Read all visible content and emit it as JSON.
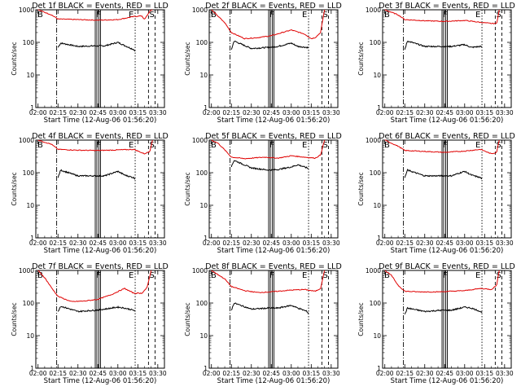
{
  "chart_data": {
    "type": "line",
    "layout": "3x3 grid",
    "colors": {
      "events": "#000000",
      "lld": "#e00000",
      "axes": "#000000"
    },
    "x_ticks": [
      "02:00",
      "02:15",
      "02:30",
      "02:45",
      "03:00",
      "03:15",
      "03:30"
    ],
    "xlabel": "Start Time (12-Aug-06 01:56:20)",
    "ylabel": "Counts/sec",
    "yscale": "log",
    "y_ticks": [
      "1",
      "10",
      "100",
      "1000"
    ],
    "xlim": [
      "01:58:20",
      "03:35:00"
    ],
    "ylim": [
      1,
      1000
    ],
    "markers": {
      "start_label": "B",
      "end_label": "E",
      "saa_label": "S",
      "flare_label": "F"
    },
    "vertical_lines": {
      "dashdot": "02:14",
      "flare_box": [
        "02:43",
        "02:47"
      ],
      "dotted": "03:13",
      "dashed": "03:23",
      "dashed2": "03:28"
    },
    "panels": [
      {
        "title": "Det 1f BLACK = Events, RED = LLD",
        "series": [
          {
            "name": "Events",
            "x": [
              "02:15",
              "02:17",
              "02:30",
              "02:43",
              "02:50",
              "03:00",
              "03:05",
              "03:12",
              "03:13"
            ],
            "values": [
              70,
              95,
              75,
              78,
              78,
              100,
              80,
              60,
              55
            ]
          },
          {
            "name": "LLD",
            "x": [
              "02:00",
              "02:10",
              "02:15",
              "02:30",
              "02:45",
              "03:00",
              "03:12",
              "03:18",
              "03:20",
              "03:24",
              "03:26"
            ],
            "values": [
              1000,
              700,
              520,
              500,
              480,
              500,
              620,
              650,
              500,
              900,
              1000
            ]
          }
        ]
      },
      {
        "title": "Det 2f BLACK = Events, RED = LLD",
        "series": [
          {
            "name": "Events",
            "x": [
              "02:15",
              "02:17",
              "02:30",
              "02:43",
              "02:50",
              "03:00",
              "03:05",
              "03:12",
              "03:13"
            ],
            "values": [
              60,
              110,
              65,
              70,
              75,
              95,
              75,
              70,
              68
            ]
          },
          {
            "name": "LLD",
            "x": [
              "02:00",
              "02:10",
              "02:15",
              "02:25",
              "02:35",
              "02:45",
              "03:00",
              "03:10",
              "03:15",
              "03:18",
              "03:22",
              "03:25"
            ],
            "values": [
              1000,
              400,
              200,
              130,
              140,
              160,
              240,
              180,
              130,
              140,
              200,
              1000
            ]
          }
        ]
      },
      {
        "title": "Det 3f BLACK = Events, RED = LLD",
        "series": [
          {
            "name": "Events",
            "x": [
              "02:15",
              "02:17",
              "02:30",
              "02:43",
              "02:50",
              "03:00",
              "03:05",
              "03:12",
              "03:13"
            ],
            "values": [
              60,
              110,
              75,
              75,
              75,
              85,
              70,
              75,
              70
            ]
          },
          {
            "name": "LLD",
            "x": [
              "02:00",
              "02:10",
              "02:15",
              "02:30",
              "02:45",
              "03:00",
              "03:10",
              "03:20",
              "03:24",
              "03:25",
              "03:26"
            ],
            "values": [
              1000,
              700,
              500,
              460,
              440,
              470,
              420,
              380,
              380,
              600,
              1000
            ]
          }
        ]
      },
      {
        "title": "Det 4f BLACK = Events, RED = LLD",
        "series": [
          {
            "name": "Events",
            "x": [
              "02:15",
              "02:17",
              "02:30",
              "02:43",
              "02:50",
              "03:00",
              "03:05",
              "03:12",
              "03:13"
            ],
            "values": [
              70,
              120,
              80,
              80,
              80,
              110,
              85,
              70,
              65
            ]
          },
          {
            "name": "LLD",
            "x": [
              "02:00",
              "02:10",
              "02:15",
              "02:30",
              "02:45",
              "03:00",
              "03:12",
              "03:20",
              "03:24",
              "03:26"
            ],
            "values": [
              1000,
              750,
              520,
              490,
              480,
              500,
              520,
              380,
              450,
              1000
            ]
          }
        ]
      },
      {
        "title": "Det 5f BLACK = Events, RED = LLD",
        "series": [
          {
            "name": "Events",
            "x": [
              "02:15",
              "02:17",
              "02:30",
              "02:43",
              "02:50",
              "03:00",
              "03:05",
              "03:12",
              "03:13"
            ],
            "values": [
              150,
              240,
              140,
              120,
              125,
              150,
              175,
              140,
              130
            ]
          },
          {
            "name": "LLD",
            "x": [
              "02:00",
              "02:05",
              "02:10",
              "02:15",
              "02:25",
              "02:40",
              "02:50",
              "03:00",
              "03:10",
              "03:18",
              "03:22",
              "03:25"
            ],
            "values": [
              1000,
              800,
              500,
              300,
              270,
              300,
              280,
              330,
              300,
              280,
              350,
              1000
            ]
          }
        ]
      },
      {
        "title": "Det 6f BLACK = Events, RED = LLD",
        "series": [
          {
            "name": "Events",
            "x": [
              "02:15",
              "02:17",
              "02:30",
              "02:43",
              "02:50",
              "03:00",
              "03:05",
              "03:12",
              "03:13"
            ],
            "values": [
              70,
              120,
              80,
              80,
              80,
              110,
              85,
              70,
              65
            ]
          },
          {
            "name": "LLD",
            "x": [
              "02:00",
              "02:10",
              "02:15",
              "02:30",
              "02:45",
              "03:00",
              "03:12",
              "03:20",
              "03:24",
              "03:26"
            ],
            "values": [
              1000,
              650,
              480,
              450,
              420,
              460,
              520,
              380,
              420,
              1000
            ]
          }
        ]
      },
      {
        "title": "Det 7f BLACK = Events, RED = LLD",
        "series": [
          {
            "name": "Events",
            "x": [
              "02:15",
              "02:17",
              "02:30",
              "02:43",
              "02:50",
              "03:00",
              "03:05",
              "03:12",
              "03:13"
            ],
            "values": [
              55,
              80,
              55,
              60,
              65,
              75,
              70,
              60,
              55
            ]
          },
          {
            "name": "LLD",
            "x": [
              "02:00",
              "02:05",
              "02:10",
              "02:15",
              "02:25",
              "02:35",
              "02:45",
              "02:55",
              "03:05",
              "03:12",
              "03:18",
              "03:22",
              "03:25"
            ],
            "values": [
              1000,
              600,
              300,
              160,
              110,
              115,
              130,
              180,
              280,
              200,
              200,
              300,
              1000
            ]
          }
        ]
      },
      {
        "title": "Det 8f BLACK = Events, RED = LLD",
        "series": [
          {
            "name": "Events",
            "x": [
              "02:15",
              "02:17",
              "02:30",
              "02:43",
              "02:50",
              "03:00",
              "03:05",
              "03:12",
              "03:13"
            ],
            "values": [
              60,
              100,
              65,
              70,
              70,
              85,
              70,
              55,
              45
            ]
          },
          {
            "name": "LLD",
            "x": [
              "02:00",
              "02:10",
              "02:15",
              "02:25",
              "02:35",
              "02:45",
              "03:00",
              "03:10",
              "03:15",
              "03:18",
              "03:22",
              "03:25"
            ],
            "values": [
              1000,
              550,
              320,
              240,
              210,
              220,
              250,
              260,
              240,
              230,
              280,
              1000
            ]
          }
        ]
      },
      {
        "title": "Det 9f BLACK = Events, RED = LLD",
        "series": [
          {
            "name": "Events",
            "x": [
              "02:15",
              "02:17",
              "02:30",
              "02:43",
              "02:50",
              "03:00",
              "03:05",
              "03:12",
              "03:13"
            ],
            "values": [
              45,
              70,
              55,
              60,
              60,
              75,
              70,
              55,
              50
            ]
          },
          {
            "name": "LLD",
            "x": [
              "02:00",
              "02:05",
              "02:10",
              "02:15",
              "02:25",
              "02:40",
              "02:50",
              "03:00",
              "03:12",
              "03:20",
              "03:24",
              "03:26"
            ],
            "values": [
              1000,
              700,
              350,
              230,
              220,
              220,
              230,
              240,
              280,
              260,
              350,
              1000
            ]
          }
        ]
      }
    ]
  }
}
